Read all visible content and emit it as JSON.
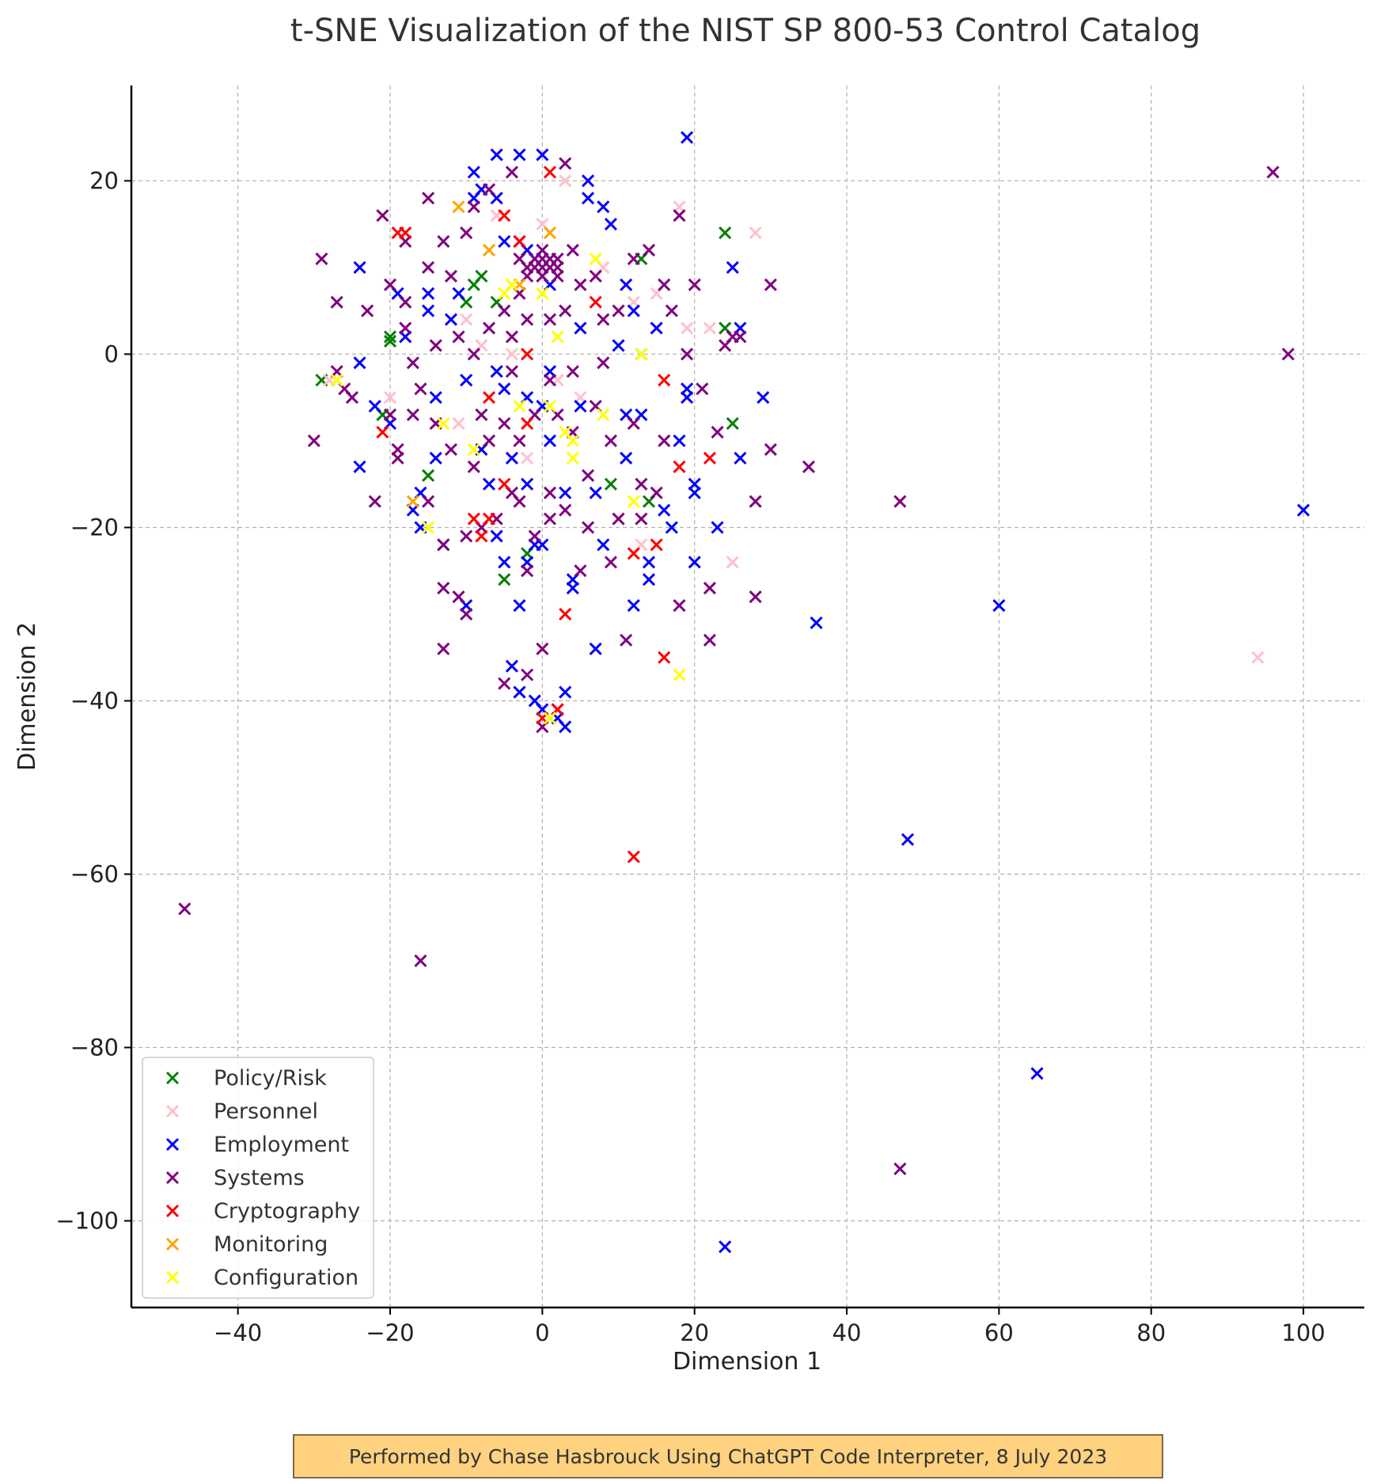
{
  "chart_data": {
    "type": "scatter",
    "title": "t-SNE Visualization of the NIST SP 800-53 Control Catalog",
    "xlabel": "Dimension 1",
    "ylabel": "Dimension 2",
    "xlim": [
      -54,
      108
    ],
    "ylim": [
      -110,
      31
    ],
    "xticks": [
      -40,
      -20,
      0,
      20,
      40,
      60,
      80,
      100
    ],
    "yticks": [
      -100,
      -80,
      -60,
      -40,
      -20,
      0,
      20
    ],
    "xtick_labels": [
      "−40",
      "−20",
      "0",
      "20",
      "40",
      "60",
      "80",
      "100"
    ],
    "ytick_labels": [
      "−100",
      "−80",
      "−60",
      "−40",
      "−20",
      "0",
      "20"
    ],
    "grid": true,
    "legend_position": "bottom-left",
    "series": [
      {
        "name": "Policy/Risk",
        "color": "#008000",
        "points": [
          [
            -29,
            -3
          ],
          [
            -27,
            -3
          ],
          [
            -21,
            -7
          ],
          [
            -20,
            2
          ],
          [
            -20,
            1.5
          ],
          [
            -15,
            -14
          ],
          [
            -10,
            6
          ],
          [
            -9,
            8
          ],
          [
            -8,
            9
          ],
          [
            -6,
            6
          ],
          [
            -5,
            -26
          ],
          [
            -2,
            -23
          ],
          [
            9,
            -15
          ],
          [
            13,
            11
          ],
          [
            13,
            0
          ],
          [
            14,
            -17
          ],
          [
            24,
            14
          ],
          [
            24,
            3
          ],
          [
            25,
            -8
          ]
        ]
      },
      {
        "name": "Personnel",
        "color": "#ffc0cb",
        "points": [
          [
            -28,
            -3
          ],
          [
            -25,
            -5
          ],
          [
            -20,
            -5
          ],
          [
            -14,
            -8
          ],
          [
            -11,
            -8
          ],
          [
            -10,
            4
          ],
          [
            -8,
            1
          ],
          [
            -6,
            16
          ],
          [
            -4,
            0
          ],
          [
            -2,
            -12
          ],
          [
            0,
            15
          ],
          [
            2,
            -3
          ],
          [
            3,
            20
          ],
          [
            5,
            -5
          ],
          [
            8,
            10
          ],
          [
            10,
            -19
          ],
          [
            12,
            6
          ],
          [
            13,
            -22
          ],
          [
            15,
            7
          ],
          [
            18,
            17
          ],
          [
            19,
            3
          ],
          [
            22,
            3
          ],
          [
            25,
            -24
          ],
          [
            28,
            14
          ],
          [
            94,
            -35
          ]
        ]
      },
      {
        "name": "Employment",
        "color": "#0000ff",
        "points": [
          [
            -24,
            10
          ],
          [
            -24,
            -1
          ],
          [
            -24,
            -13
          ],
          [
            -22,
            -6
          ],
          [
            -20,
            -8
          ],
          [
            -19,
            7
          ],
          [
            -18,
            2
          ],
          [
            -17,
            -18
          ],
          [
            -16,
            -16
          ],
          [
            -16,
            -20
          ],
          [
            -15,
            7
          ],
          [
            -15,
            5
          ],
          [
            -14,
            -5
          ],
          [
            -14,
            -12
          ],
          [
            -13,
            -22
          ],
          [
            -12,
            4
          ],
          [
            -11,
            7
          ],
          [
            -10,
            -3
          ],
          [
            -10,
            -29
          ],
          [
            -9,
            21
          ],
          [
            -9,
            18
          ],
          [
            -8,
            19
          ],
          [
            -8,
            -11
          ],
          [
            -7,
            -15
          ],
          [
            -6,
            23
          ],
          [
            -6,
            18
          ],
          [
            -6,
            -2
          ],
          [
            -6,
            -21
          ],
          [
            -5,
            13
          ],
          [
            -5,
            -4
          ],
          [
            -5,
            -24
          ],
          [
            -4,
            -36
          ],
          [
            -4,
            -12
          ],
          [
            -3,
            23
          ],
          [
            -3,
            -29
          ],
          [
            -3,
            -39
          ],
          [
            -2,
            12
          ],
          [
            -2,
            -5
          ],
          [
            -2,
            -15
          ],
          [
            -2,
            -24
          ],
          [
            -1,
            11
          ],
          [
            -1,
            -40
          ],
          [
            -1,
            -22
          ],
          [
            0,
            23
          ],
          [
            0,
            -6
          ],
          [
            0,
            -22
          ],
          [
            0,
            -41
          ],
          [
            1,
            8
          ],
          [
            1,
            -2
          ],
          [
            1,
            -10
          ],
          [
            2,
            -42
          ],
          [
            3,
            -39
          ],
          [
            3,
            -16
          ],
          [
            3,
            -43
          ],
          [
            4,
            -27
          ],
          [
            4,
            -26
          ],
          [
            5,
            3
          ],
          [
            5,
            -6
          ],
          [
            6,
            20
          ],
          [
            6,
            18
          ],
          [
            7,
            -16
          ],
          [
            7,
            -34
          ],
          [
            8,
            -22
          ],
          [
            8,
            17
          ],
          [
            9,
            15
          ],
          [
            10,
            1
          ],
          [
            11,
            -12
          ],
          [
            11,
            8
          ],
          [
            11,
            -7
          ],
          [
            12,
            -29
          ],
          [
            12,
            5
          ],
          [
            13,
            -7
          ],
          [
            14,
            -24
          ],
          [
            14,
            -26
          ],
          [
            15,
            3
          ],
          [
            16,
            -18
          ],
          [
            17,
            -20
          ],
          [
            18,
            -10
          ],
          [
            19,
            25
          ],
          [
            19,
            -4
          ],
          [
            19,
            -5
          ],
          [
            20,
            -15
          ],
          [
            20,
            -16
          ],
          [
            20,
            -24
          ],
          [
            23,
            -20
          ],
          [
            25,
            10
          ],
          [
            26,
            3
          ],
          [
            26,
            -12
          ],
          [
            29,
            -5
          ],
          [
            36,
            -31
          ],
          [
            48,
            -56
          ],
          [
            60,
            -29
          ],
          [
            65,
            -83
          ],
          [
            24,
            -103
          ],
          [
            100,
            -18
          ]
        ]
      },
      {
        "name": "Systems",
        "color": "#800080",
        "points": [
          [
            -47,
            -64
          ],
          [
            -30,
            -10
          ],
          [
            -29,
            11
          ],
          [
            -27,
            6
          ],
          [
            -27,
            -2
          ],
          [
            -26,
            -4
          ],
          [
            -25,
            -5
          ],
          [
            -23,
            5
          ],
          [
            -22,
            -17
          ],
          [
            -21,
            16
          ],
          [
            -20,
            8
          ],
          [
            -20,
            -7
          ],
          [
            -19,
            -11
          ],
          [
            -19,
            -12
          ],
          [
            -18,
            13
          ],
          [
            -18,
            6
          ],
          [
            -18,
            3
          ],
          [
            -17,
            -1
          ],
          [
            -17,
            -7
          ],
          [
            -16,
            -70
          ],
          [
            -16,
            -4
          ],
          [
            -15,
            18
          ],
          [
            -15,
            10
          ],
          [
            -15,
            -17
          ],
          [
            -14,
            1
          ],
          [
            -14,
            -8
          ],
          [
            -13,
            -22
          ],
          [
            -13,
            -27
          ],
          [
            -13,
            -34
          ],
          [
            -13,
            13
          ],
          [
            -12,
            9
          ],
          [
            -12,
            -11
          ],
          [
            -11,
            2
          ],
          [
            -11,
            -28
          ],
          [
            -10,
            -30
          ],
          [
            -10,
            -21
          ],
          [
            -10,
            14
          ],
          [
            -9,
            17
          ],
          [
            -9,
            0
          ],
          [
            -9,
            -13
          ],
          [
            -8,
            -7
          ],
          [
            -8,
            -20
          ],
          [
            -7,
            3
          ],
          [
            -7,
            19
          ],
          [
            -7,
            -10
          ],
          [
            -6,
            -19
          ],
          [
            -5,
            -38
          ],
          [
            -5,
            5
          ],
          [
            -5,
            -8
          ],
          [
            -4,
            21
          ],
          [
            -4,
            2
          ],
          [
            -4,
            -2
          ],
          [
            -4,
            -16
          ],
          [
            -3,
            13
          ],
          [
            -3,
            7
          ],
          [
            -3,
            -10
          ],
          [
            -3,
            -17
          ],
          [
            -2,
            4
          ],
          [
            -2,
            -25
          ],
          [
            -2,
            -37
          ],
          [
            -1,
            10
          ],
          [
            -1,
            -7
          ],
          [
            -1,
            -21
          ],
          [
            0,
            11
          ],
          [
            0,
            9
          ],
          [
            0,
            -34
          ],
          [
            0,
            -43
          ],
          [
            1,
            4
          ],
          [
            1,
            -3
          ],
          [
            1,
            -16
          ],
          [
            1,
            -19
          ],
          [
            2,
            10
          ],
          [
            2,
            -7
          ],
          [
            2,
            -41
          ],
          [
            3,
            22
          ],
          [
            3,
            5
          ],
          [
            3,
            -18
          ],
          [
            4,
            12
          ],
          [
            4,
            -2
          ],
          [
            4,
            -9
          ],
          [
            5,
            8
          ],
          [
            5,
            -25
          ],
          [
            6,
            -14
          ],
          [
            6,
            -20
          ],
          [
            7,
            9
          ],
          [
            7,
            -6
          ],
          [
            8,
            -1
          ],
          [
            8,
            4
          ],
          [
            9,
            -10
          ],
          [
            9,
            -24
          ],
          [
            10,
            -19
          ],
          [
            10,
            5
          ],
          [
            11,
            -33
          ],
          [
            12,
            11
          ],
          [
            12,
            -8
          ],
          [
            13,
            -15
          ],
          [
            13,
            -19
          ],
          [
            14,
            12
          ],
          [
            15,
            -16
          ],
          [
            16,
            8
          ],
          [
            16,
            -10
          ],
          [
            17,
            5
          ],
          [
            18,
            -29
          ],
          [
            18,
            16
          ],
          [
            19,
            0
          ],
          [
            20,
            8
          ],
          [
            21,
            -4
          ],
          [
            22,
            -27
          ],
          [
            22,
            -33
          ],
          [
            23,
            -9
          ],
          [
            24,
            1
          ],
          [
            25,
            2
          ],
          [
            26,
            2
          ],
          [
            28,
            -17
          ],
          [
            28,
            -28
          ],
          [
            30,
            8
          ],
          [
            30,
            -11
          ],
          [
            35,
            -13
          ],
          [
            47,
            -17
          ],
          [
            47,
            -94
          ],
          [
            96,
            21
          ],
          [
            98,
            0
          ],
          [
            -2,
            10
          ],
          [
            -1,
            11
          ],
          [
            1,
            10
          ],
          [
            2,
            9
          ],
          [
            -3,
            11
          ],
          [
            0,
            12
          ],
          [
            1,
            11
          ],
          [
            -2,
            9
          ],
          [
            0,
            10
          ],
          [
            2,
            11
          ]
        ]
      },
      {
        "name": "Cryptography",
        "color": "#ff0000",
        "points": [
          [
            -21,
            -9
          ],
          [
            -19,
            14
          ],
          [
            -18,
            14
          ],
          [
            -9,
            -19
          ],
          [
            -8,
            -21
          ],
          [
            -7,
            -19
          ],
          [
            -7,
            -5
          ],
          [
            -5,
            16
          ],
          [
            -5,
            -15
          ],
          [
            -3,
            13
          ],
          [
            -2,
            -8
          ],
          [
            -2,
            0
          ],
          [
            0,
            -42
          ],
          [
            1,
            21
          ],
          [
            2,
            -41
          ],
          [
            3,
            -30
          ],
          [
            7,
            6
          ],
          [
            12,
            -58
          ],
          [
            12,
            -23
          ],
          [
            15,
            -22
          ],
          [
            16,
            -35
          ],
          [
            16,
            -3
          ],
          [
            18,
            -13
          ],
          [
            22,
            -12
          ]
        ]
      },
      {
        "name": "Monitoring",
        "color": "#ffa500",
        "points": [
          [
            -27,
            -3
          ],
          [
            -17,
            -17
          ],
          [
            -11,
            17
          ],
          [
            -7,
            12
          ],
          [
            -3,
            8
          ],
          [
            1,
            14
          ],
          [
            1,
            -42
          ]
        ]
      },
      {
        "name": "Configuration",
        "color": "#ffff00",
        "points": [
          [
            -27,
            -3
          ],
          [
            -15,
            -20
          ],
          [
            -13,
            -8
          ],
          [
            -9,
            -11
          ],
          [
            -5,
            7
          ],
          [
            -4,
            8
          ],
          [
            -3,
            -6
          ],
          [
            0,
            7
          ],
          [
            1,
            -6
          ],
          [
            2,
            2
          ],
          [
            3,
            -9
          ],
          [
            4,
            -10
          ],
          [
            4,
            -12
          ],
          [
            7,
            11
          ],
          [
            8,
            -7
          ],
          [
            12,
            -17
          ],
          [
            13,
            0
          ],
          [
            18,
            -37
          ],
          [
            1,
            -42
          ]
        ]
      }
    ]
  },
  "footer": {
    "note": "Performed by Chase Hasbrouck Using ChatGPT Code Interpreter, 8 July 2023"
  }
}
